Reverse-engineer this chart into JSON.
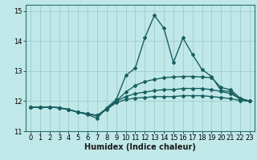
{
  "xlabel": "Humidex (Indice chaleur)",
  "background_color": "#c0e8e8",
  "grid_color": "#a0cccc",
  "line_color": "#1a6060",
  "xlim": [
    -0.5,
    23.5
  ],
  "ylim": [
    11,
    15.2
  ],
  "yticks": [
    11,
    12,
    13,
    14,
    15
  ],
  "xticks": [
    0,
    1,
    2,
    3,
    4,
    5,
    6,
    7,
    8,
    9,
    10,
    11,
    12,
    13,
    14,
    15,
    16,
    17,
    18,
    19,
    20,
    21,
    22,
    23
  ],
  "series": [
    [
      11.8,
      11.8,
      11.8,
      11.78,
      11.72,
      11.63,
      11.55,
      11.43,
      11.78,
      12.05,
      12.85,
      13.1,
      14.1,
      14.85,
      14.42,
      13.28,
      14.1,
      13.55,
      13.05,
      12.82,
      12.35,
      12.32,
      12.05,
      12.0
    ],
    [
      11.8,
      11.8,
      11.8,
      11.78,
      11.72,
      11.63,
      11.58,
      11.52,
      11.75,
      12.0,
      12.3,
      12.52,
      12.65,
      12.72,
      12.78,
      12.8,
      12.82,
      12.82,
      12.8,
      12.78,
      12.45,
      12.38,
      12.1,
      12.0
    ],
    [
      11.8,
      11.8,
      11.8,
      11.78,
      11.72,
      11.63,
      11.58,
      11.52,
      11.75,
      12.0,
      12.15,
      12.25,
      12.3,
      12.35,
      12.38,
      12.38,
      12.42,
      12.42,
      12.42,
      12.38,
      12.32,
      12.25,
      12.08,
      12.0
    ],
    [
      11.8,
      11.8,
      11.8,
      11.78,
      11.72,
      11.63,
      11.58,
      11.52,
      11.72,
      11.95,
      12.05,
      12.1,
      12.12,
      12.15,
      12.15,
      12.15,
      12.18,
      12.18,
      12.18,
      12.15,
      12.12,
      12.08,
      12.02,
      12.0
    ]
  ],
  "marker": "D",
  "markersize": 2.0,
  "linewidth": 1.0,
  "xlabel_fontsize": 7,
  "tick_fontsize": 6
}
